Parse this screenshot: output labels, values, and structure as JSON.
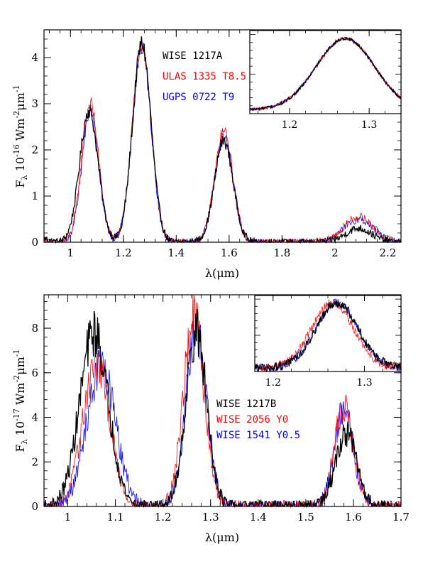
{
  "chart_data": [
    {
      "type": "line",
      "xlabel": "λ(μm)",
      "ylabel": "F<sub>λ</sub> 10<sup>-16</sup> Wm<sup>-2</sup>μm<sup>-1</sup>",
      "ylabel_parts": {
        "main": "F",
        "sub": "λ",
        "mid1": " 10",
        "sup1": "-16",
        "mid2": " Wm",
        "sup2": "-2",
        "mid3": "μm",
        "sup3": "-1"
      },
      "xlim": [
        0.9,
        2.25
      ],
      "ylim": [
        0,
        4.6
      ],
      "xticks": [
        1,
        1.2,
        1.4,
        1.6,
        1.8,
        2,
        2.2
      ],
      "xtick_labels": [
        "1",
        "1.2",
        "1.4",
        "1.6",
        "1.8",
        "2",
        "2.2"
      ],
      "yticks": [
        0,
        1,
        2,
        3,
        4
      ],
      "ytick_labels": [
        "0",
        "1",
        "2",
        "3",
        "4"
      ],
      "legend_position": "top-center",
      "series": [
        {
          "name": "WISE 1217A",
          "color": "#000000",
          "peaks": [
            [
              0.9,
              0.08,
              0.02
            ],
            [
              1.07,
              2.85,
              0.035
            ],
            [
              1.27,
              4.3,
              0.035
            ],
            [
              1.58,
              2.2,
              0.035
            ],
            [
              2.09,
              0.3,
              0.05
            ]
          ]
        },
        {
          "name": "ULAS 1335 T8.5",
          "color": "#ff0000",
          "peaks": [
            [
              1.075,
              3.0,
              0.032
            ],
            [
              1.27,
              4.3,
              0.035
            ],
            [
              1.58,
              2.4,
              0.034
            ],
            [
              2.09,
              0.55,
              0.055
            ]
          ]
        },
        {
          "name": "UGPS 0722 T9",
          "color": "#0000ff",
          "peaks": [
            [
              1.075,
              2.9,
              0.031
            ],
            [
              1.27,
              4.2,
              0.035
            ],
            [
              1.58,
              2.3,
              0.034
            ],
            [
              2.09,
              0.5,
              0.055
            ]
          ]
        }
      ],
      "inset": {
        "xlim": [
          1.15,
          1.34
        ],
        "ylim": [
          0,
          1.05
        ],
        "xticks": [
          1.2,
          1.3
        ],
        "xtick_labels": [
          "1.2",
          "1.3"
        ],
        "position": "top-right"
      }
    },
    {
      "type": "line",
      "xlabel": "λ(μm)",
      "ylabel_parts": {
        "main": "F",
        "sub": "λ",
        "mid1": " 10",
        "sup1": "-17",
        "mid2": " Wm",
        "sup2": "-2",
        "mid3": "μm",
        "sup3": "-1"
      },
      "xlim": [
        0.95,
        1.7
      ],
      "ylim": [
        0,
        9.5
      ],
      "xticks": [
        1,
        1.1,
        1.2,
        1.3,
        1.4,
        1.5,
        1.6,
        1.7
      ],
      "xtick_labels": [
        "1",
        "1.1",
        "1.2",
        "1.3",
        "1.4",
        "1.5",
        "1.6",
        "1.7"
      ],
      "yticks": [
        0,
        2,
        4,
        6,
        8
      ],
      "ytick_labels": [
        "0",
        "2",
        "4",
        "6",
        "8"
      ],
      "legend_position": "center-right",
      "series": [
        {
          "name": "WISE 1217B",
          "color": "#000000",
          "peaks": [
            [
              1.055,
              7.8,
              0.03
            ],
            [
              1.27,
              7.8,
              0.022
            ],
            [
              1.585,
              3.3,
              0.022
            ]
          ]
        },
        {
          "name": "WISE 2056 Y0",
          "color": "#ff0000",
          "peaks": [
            [
              1.06,
              6.5,
              0.028
            ],
            [
              1.265,
              8.5,
              0.022
            ],
            [
              1.58,
              4.5,
              0.02
            ]
          ]
        },
        {
          "name": "WISE 1541 Y0.5",
          "color": "#0000ff",
          "peaks": [
            [
              1.07,
              6.3,
              0.03
            ],
            [
              1.27,
              7.8,
              0.022
            ],
            [
              1.58,
              4.3,
              0.02
            ]
          ]
        }
      ],
      "inset": {
        "xlim": [
          1.18,
          1.34
        ],
        "ylim": [
          0,
          1.05
        ],
        "xticks": [
          1.2,
          1.3
        ],
        "xtick_labels": [
          "1.2",
          "1.3"
        ],
        "position": "top-right"
      }
    }
  ]
}
